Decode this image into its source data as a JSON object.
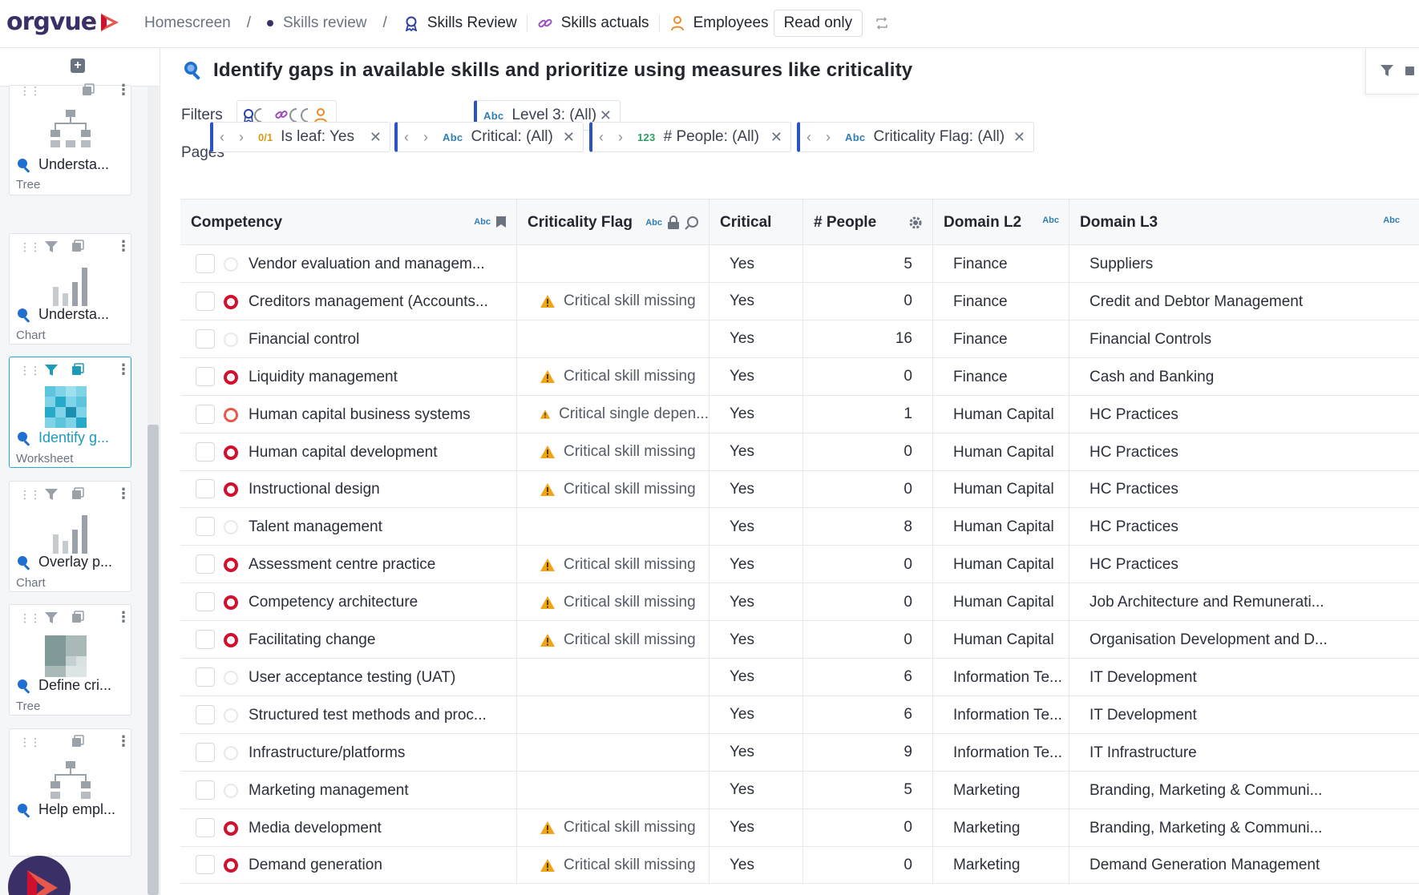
{
  "app": {
    "logo_text": "orgvue"
  },
  "breadcrumb": {
    "home": "Homescreen",
    "sep": "/",
    "skills_review": "Skills review",
    "tabs": [
      {
        "label": "Skills Review",
        "icon": "rosette-icon"
      },
      {
        "label": "Skills actuals",
        "icon": "link-icon"
      },
      {
        "label": "Employees",
        "icon": "person-icon"
      }
    ],
    "mode": "Read only"
  },
  "sidebar": {
    "cards": [
      {
        "title": "Understa...",
        "type": "Tree",
        "thumb": "tree"
      },
      {
        "title": "Understa...",
        "type": "Chart",
        "thumb": "bar-chart"
      },
      {
        "title": "Identify g...",
        "type": "Worksheet",
        "thumb": "grid",
        "active": true
      },
      {
        "title": "Overlay p...",
        "type": "Chart",
        "thumb": "bar-chart"
      },
      {
        "title": "Define cri...",
        "type": "Tree",
        "thumb": "treemap"
      },
      {
        "title": "Help empl...",
        "type": "",
        "thumb": "tree"
      }
    ]
  },
  "main": {
    "title": "Identify gaps in available skills and prioritize using measures like criticality",
    "filters_label": "Filters",
    "pages_label": "Pages",
    "filter_chip": {
      "type": "Abc",
      "label": "Level 3: (All)"
    },
    "page_chips": [
      {
        "type": "0/1",
        "label": "Is leaf: Yes"
      },
      {
        "type": "Abc",
        "label": "Critical: (All)"
      },
      {
        "type": "123",
        "label": "# People: (All)"
      },
      {
        "type": "Abc",
        "label": "Criticality Flag: (All)"
      }
    ]
  },
  "table": {
    "columns": [
      {
        "label": "Competency",
        "type": "Abc"
      },
      {
        "label": "Criticality Flag",
        "type": "Abc"
      },
      {
        "label": "Critical",
        "type": ""
      },
      {
        "label": "# People",
        "type": ""
      },
      {
        "label": "Domain L2",
        "type": "Abc"
      },
      {
        "label": "Domain L3",
        "type": "Abc"
      }
    ],
    "rows": [
      {
        "status": "none",
        "competency": "Vendor evaluation and managem...",
        "flag": "",
        "critical": "Yes",
        "people": "5",
        "l2": "Finance",
        "l3": "Suppliers"
      },
      {
        "status": "red",
        "competency": "Creditors management (Accounts...",
        "flag": "Critical skill missing",
        "critical": "Yes",
        "people": "0",
        "l2": "Finance",
        "l3": "Credit and Debtor Management"
      },
      {
        "status": "none",
        "competency": "Financial control",
        "flag": "",
        "critical": "Yes",
        "people": "16",
        "l2": "Finance",
        "l3": "Financial Controls"
      },
      {
        "status": "red",
        "competency": "Liquidity management",
        "flag": "Critical skill missing",
        "critical": "Yes",
        "people": "0",
        "l2": "Finance",
        "l3": "Cash and Banking"
      },
      {
        "status": "orange",
        "competency": "Human capital business systems",
        "flag": "Critical single depen...",
        "critical": "Yes",
        "people": "1",
        "l2": "Human Capital",
        "l3": "HC Practices"
      },
      {
        "status": "red",
        "competency": "Human capital development",
        "flag": "Critical skill missing",
        "critical": "Yes",
        "people": "0",
        "l2": "Human Capital",
        "l3": "HC Practices"
      },
      {
        "status": "red",
        "competency": "Instructional design",
        "flag": "Critical skill missing",
        "critical": "Yes",
        "people": "0",
        "l2": "Human Capital",
        "l3": "HC Practices"
      },
      {
        "status": "none",
        "competency": "Talent management",
        "flag": "",
        "critical": "Yes",
        "people": "8",
        "l2": "Human Capital",
        "l3": "HC Practices"
      },
      {
        "status": "red",
        "competency": "Assessment centre practice",
        "flag": "Critical skill missing",
        "critical": "Yes",
        "people": "0",
        "l2": "Human Capital",
        "l3": "HC Practices"
      },
      {
        "status": "red",
        "competency": "Competency architecture",
        "flag": "Critical skill missing",
        "critical": "Yes",
        "people": "0",
        "l2": "Human Capital",
        "l3": "Job Architecture and Remunerati..."
      },
      {
        "status": "red",
        "competency": "Facilitating change",
        "flag": "Critical skill missing",
        "critical": "Yes",
        "people": "0",
        "l2": "Human Capital",
        "l3": "Organisation Development and D..."
      },
      {
        "status": "none",
        "competency": "User acceptance testing (UAT)",
        "flag": "",
        "critical": "Yes",
        "people": "6",
        "l2": "Information Te...",
        "l3": "IT Development"
      },
      {
        "status": "none",
        "competency": "Structured test methods and proc...",
        "flag": "",
        "critical": "Yes",
        "people": "6",
        "l2": "Information Te...",
        "l3": "IT Development"
      },
      {
        "status": "none",
        "competency": "Infrastructure/platforms",
        "flag": "",
        "critical": "Yes",
        "people": "9",
        "l2": "Information Te...",
        "l3": "IT Infrastructure"
      },
      {
        "status": "none",
        "competency": "Marketing management",
        "flag": "",
        "critical": "Yes",
        "people": "5",
        "l2": "Marketing",
        "l3": "Branding, Marketing & Communi..."
      },
      {
        "status": "red",
        "competency": "Media development",
        "flag": "Critical skill missing",
        "critical": "Yes",
        "people": "0",
        "l2": "Marketing",
        "l3": "Branding, Marketing & Communi..."
      },
      {
        "status": "red",
        "competency": "Demand generation",
        "flag": "Critical skill missing",
        "critical": "Yes",
        "people": "0",
        "l2": "Marketing",
        "l3": "Demand Generation Management"
      }
    ]
  },
  "colors": {
    "brand": "#3a2f66",
    "accent": "#27a9c9",
    "critical": "#d0102e",
    "warning": "#f0a418"
  }
}
